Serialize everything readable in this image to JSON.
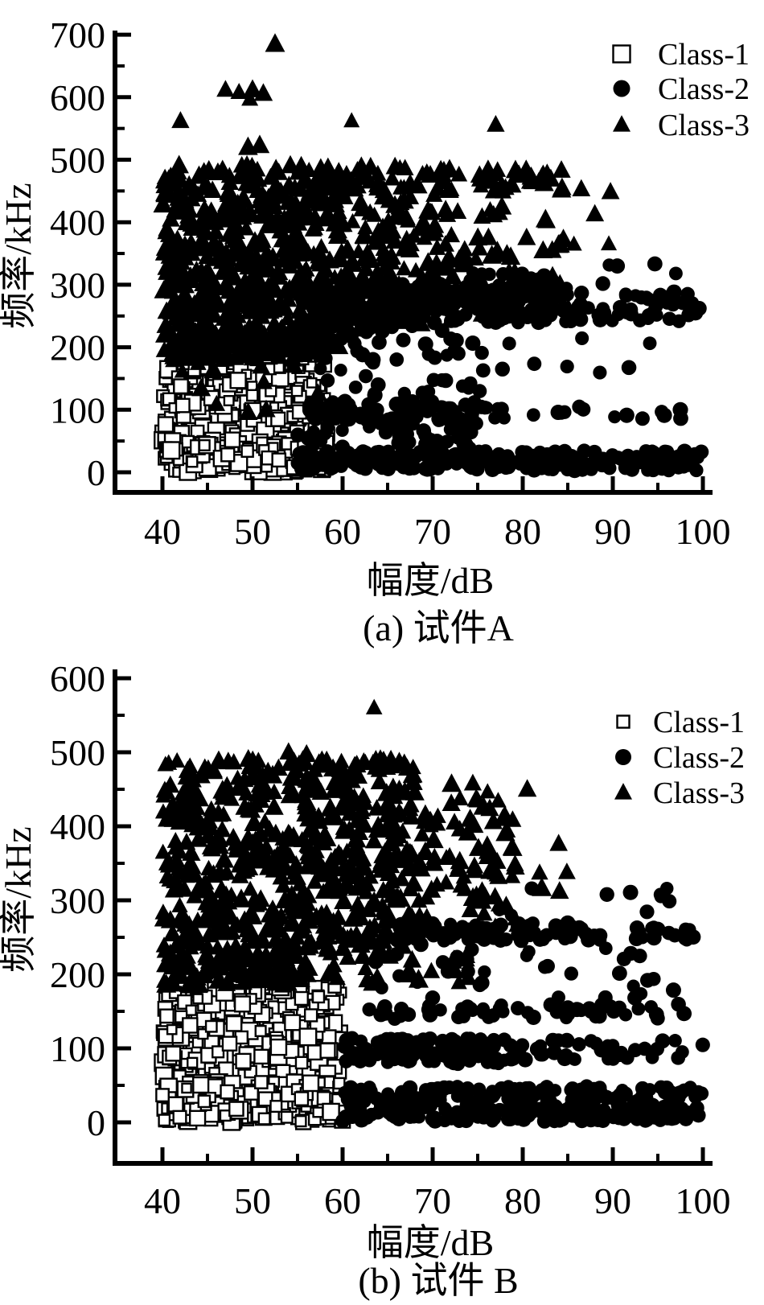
{
  "page": {
    "background_color": "#ffffff",
    "ink_color": "#000000"
  },
  "chart_data": [
    {
      "type": "scatter",
      "panel_id": "a",
      "title": "(a) 试件A",
      "xlabel": "幅度/dB",
      "ylabel": "频率/kHz",
      "xlim": [
        40,
        100
      ],
      "ylim": [
        0,
        700
      ],
      "x_major_ticks": [
        40,
        50,
        60,
        70,
        80,
        90,
        100
      ],
      "x_minor_step": 5,
      "y_major_ticks": [
        0,
        100,
        200,
        300,
        400,
        500,
        600,
        700
      ],
      "y_minor_step": 50,
      "grid": false,
      "legend_position": "top-right",
      "series": [
        {
          "name": "Class-1",
          "marker": "open-square",
          "color": "#000000",
          "clusters": [
            {
              "x": [
                40,
                58.5
              ],
              "y": [
                60,
                178
              ],
              "n": 230
            },
            {
              "x": [
                40,
                58.5
              ],
              "y": [
                0,
                52
              ],
              "n": 190
            },
            {
              "x": [
                44,
                57
              ],
              "y": [
                178,
                190
              ],
              "n": 8
            }
          ],
          "points": []
        },
        {
          "name": "Class-2",
          "marker": "filled-circle",
          "color": "#000000",
          "clusters": [
            {
              "x": [
                55,
                85
              ],
              "y": [
                238,
                302
              ],
              "n": 260,
              "rows": 4
            },
            {
              "x": [
                85,
                100
              ],
              "y": [
                240,
                290
              ],
              "n": 45,
              "rows": 3
            },
            {
              "x": [
                72,
                95
              ],
              "y": [
                300,
                335
              ],
              "n": 15
            },
            {
              "x": [
                56,
                78
              ],
              "y": [
                82,
                115
              ],
              "n": 90,
              "rows": 2
            },
            {
              "x": [
                78,
                98
              ],
              "y": [
                85,
                112
              ],
              "n": 12
            },
            {
              "x": [
                55,
                100
              ],
              "y": [
                2,
                35
              ],
              "n": 260,
              "rows": 2
            },
            {
              "x": [
                55,
                76
              ],
              "y": [
                38,
                80
              ],
              "n": 40
            },
            {
              "x": [
                57,
                76
              ],
              "y": [
                120,
                235
              ],
              "n": 50
            },
            {
              "x": [
                76,
                95
              ],
              "y": [
                150,
                235
              ],
              "n": 8
            }
          ],
          "points": [
            [
              97.5,
              100
            ],
            [
              96,
              280
            ],
            [
              98.5,
              262
            ],
            [
              90.5,
              330
            ],
            [
              97,
              318
            ]
          ]
        },
        {
          "name": "Class-3",
          "marker": "filled-triangle",
          "color": "#000000",
          "clusters": [
            {
              "x": [
                40,
                60
              ],
              "y": [
                195,
                492
              ],
              "n": 520,
              "rows": 13
            },
            {
              "x": [
                58,
                72
              ],
              "y": [
                230,
                490
              ],
              "n": 165,
              "rows": 12
            },
            {
              "x": [
                70,
                86
              ],
              "y": [
                250,
                480
              ],
              "n": 50
            },
            {
              "x": [
                60,
                85
              ],
              "y": [
                448,
                487
              ],
              "n": 36,
              "rows": 2
            },
            {
              "x": [
                40,
                58
              ],
              "y": [
                178,
                232
              ],
              "n": 110,
              "rows": 2
            },
            {
              "x": [
                41,
                58
              ],
              "y": [
                95,
                175
              ],
              "n": 12
            },
            {
              "x": [
                75,
                90
              ],
              "y": [
                340,
                470
              ],
              "n": 16
            }
          ],
          "points": [
            [
              52.5,
              685
            ],
            [
              47,
              612
            ],
            [
              48.5,
              608
            ],
            [
              50,
              612
            ],
            [
              49.7,
              597
            ],
            [
              51.2,
              606
            ],
            [
              42,
              562
            ],
            [
              61,
              562
            ],
            [
              77,
              556
            ],
            [
              86.5,
              453
            ],
            [
              49.5,
              520
            ],
            [
              50.8,
              523
            ],
            [
              41.5,
              420
            ]
          ]
        }
      ]
    },
    {
      "type": "scatter",
      "panel_id": "b",
      "title": "(b) 试件 B",
      "xlabel": "幅度/dB",
      "ylabel": "频率/kHz",
      "xlim": [
        40,
        100
      ],
      "ylim": [
        0,
        600
      ],
      "x_major_ticks": [
        40,
        50,
        60,
        70,
        80,
        90,
        100
      ],
      "x_minor_step": 5,
      "y_major_ticks": [
        0,
        100,
        200,
        300,
        400,
        500,
        600
      ],
      "y_minor_step": 50,
      "grid": false,
      "legend_position": "top-right",
      "series": [
        {
          "name": "Class-1",
          "marker": "open-square",
          "color": "#000000",
          "clusters": [
            {
              "x": [
                40,
                60
              ],
              "y": [
                62,
                185
              ],
              "n": 270
            },
            {
              "x": [
                40,
                60
              ],
              "y": [
                0,
                55
              ],
              "n": 230
            }
          ],
          "points": []
        },
        {
          "name": "Class-2",
          "marker": "filled-circle",
          "color": "#000000",
          "clusters": [
            {
              "x": [
                60,
                100
              ],
              "y": [
                0,
                50
              ],
              "n": 320,
              "rows": 2
            },
            {
              "x": [
                60,
                78
              ],
              "y": [
                78,
                115
              ],
              "n": 115,
              "rows": 2
            },
            {
              "x": [
                78,
                100
              ],
              "y": [
                80,
                112
              ],
              "n": 40,
              "rows": 2
            },
            {
              "x": [
                62,
                98
              ],
              "y": [
                138,
                162
              ],
              "n": 60,
              "rows": 1
            },
            {
              "x": [
                63,
                97
              ],
              "y": [
                168,
                245
              ],
              "n": 35
            },
            {
              "x": [
                66,
                88
              ],
              "y": [
                245,
                270
              ],
              "n": 90,
              "rows": 2
            },
            {
              "x": [
                88,
                100
              ],
              "y": [
                245,
                268
              ],
              "n": 20,
              "rows": 1
            },
            {
              "x": [
                74,
                97
              ],
              "y": [
                275,
                322
              ],
              "n": 8
            }
          ],
          "points": [
            [
              96,
              316
            ],
            [
              81,
              316
            ]
          ]
        },
        {
          "name": "Class-3",
          "marker": "filled-triangle",
          "color": "#000000",
          "clusters": [
            {
              "x": [
                40,
                68
              ],
              "y": [
                228,
                492
              ],
              "n": 600,
              "rows": 13
            },
            {
              "x": [
                68,
                80
              ],
              "y": [
                248,
                462
              ],
              "n": 80,
              "rows": 10
            },
            {
              "x": [
                40,
                56
              ],
              "y": [
                183,
                230
              ],
              "n": 115,
              "rows": 2
            },
            {
              "x": [
                56,
                75
              ],
              "y": [
                185,
                228
              ],
              "n": 32
            },
            {
              "x": [
                75,
                85
              ],
              "y": [
                280,
                390
              ],
              "n": 12
            }
          ],
          "points": [
            [
              63.5,
              560
            ],
            [
              54,
              500
            ],
            [
              56,
              497
            ],
            [
              80.5,
              450
            ]
          ]
        }
      ]
    }
  ]
}
